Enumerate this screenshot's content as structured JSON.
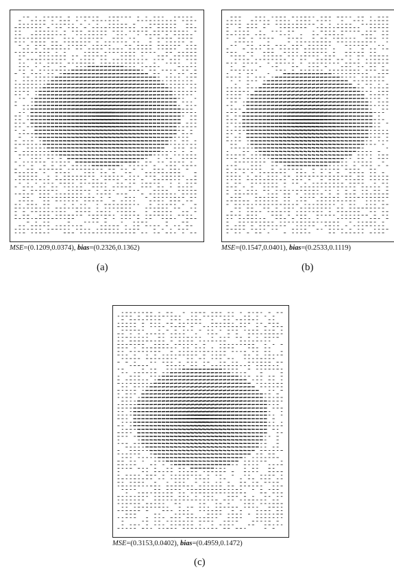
{
  "panels": [
    {
      "id": "a",
      "label": "(a)",
      "caption": {
        "mse_symbol": "MSE",
        "mse_value": "=(0.1209,0.0374), ",
        "bias_symbol": "bias",
        "bias_value": "=(0.2326,0.1362)"
      }
    },
    {
      "id": "b",
      "label": "(b)",
      "caption": {
        "mse_symbol": "MSE",
        "mse_value": "=(0.1547,0.0401), ",
        "bias_symbol": "bias",
        "bias_value": "=(0.2533,0.1119)"
      }
    },
    {
      "id": "c",
      "label": "(c)",
      "caption": {
        "mse_symbol": "MSE",
        "mse_value": "=(0.3153,0.0402), ",
        "bias_symbol": "bias",
        "bias_value": "=(0.4959,0.1472)"
      }
    }
  ],
  "colors": {
    "ink": "#111111",
    "frame": "#222222"
  }
}
